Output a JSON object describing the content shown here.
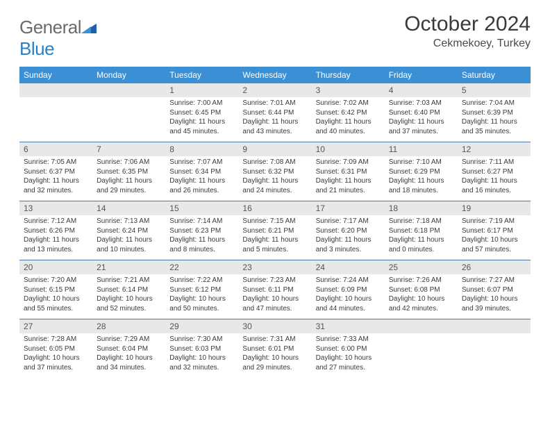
{
  "brand": {
    "part1": "General",
    "part2": "Blue"
  },
  "title": "October 2024",
  "location": "Cekmekoey, Turkey",
  "colors": {
    "header_bg": "#3b8fd4",
    "header_text": "#ffffff",
    "daynum_bg": "#e8e8e8",
    "row_border": "#4a7aa8",
    "body_text": "#3a3a3a",
    "title_text": "#3a3a3a",
    "logo_gray": "#6a6a6a",
    "logo_blue": "#2b7fc4"
  },
  "fonts": {
    "title_size_pt": 22,
    "location_size_pt": 12,
    "dow_size_pt": 9,
    "daynum_size_pt": 9,
    "body_size_pt": 7.5
  },
  "days_of_week": [
    "Sunday",
    "Monday",
    "Tuesday",
    "Wednesday",
    "Thursday",
    "Friday",
    "Saturday"
  ],
  "weeks": [
    [
      null,
      null,
      {
        "n": "1",
        "sunrise": "Sunrise: 7:00 AM",
        "sunset": "Sunset: 6:45 PM",
        "daylight": "Daylight: 11 hours and 45 minutes."
      },
      {
        "n": "2",
        "sunrise": "Sunrise: 7:01 AM",
        "sunset": "Sunset: 6:44 PM",
        "daylight": "Daylight: 11 hours and 43 minutes."
      },
      {
        "n": "3",
        "sunrise": "Sunrise: 7:02 AM",
        "sunset": "Sunset: 6:42 PM",
        "daylight": "Daylight: 11 hours and 40 minutes."
      },
      {
        "n": "4",
        "sunrise": "Sunrise: 7:03 AM",
        "sunset": "Sunset: 6:40 PM",
        "daylight": "Daylight: 11 hours and 37 minutes."
      },
      {
        "n": "5",
        "sunrise": "Sunrise: 7:04 AM",
        "sunset": "Sunset: 6:39 PM",
        "daylight": "Daylight: 11 hours and 35 minutes."
      }
    ],
    [
      {
        "n": "6",
        "sunrise": "Sunrise: 7:05 AM",
        "sunset": "Sunset: 6:37 PM",
        "daylight": "Daylight: 11 hours and 32 minutes."
      },
      {
        "n": "7",
        "sunrise": "Sunrise: 7:06 AM",
        "sunset": "Sunset: 6:35 PM",
        "daylight": "Daylight: 11 hours and 29 minutes."
      },
      {
        "n": "8",
        "sunrise": "Sunrise: 7:07 AM",
        "sunset": "Sunset: 6:34 PM",
        "daylight": "Daylight: 11 hours and 26 minutes."
      },
      {
        "n": "9",
        "sunrise": "Sunrise: 7:08 AM",
        "sunset": "Sunset: 6:32 PM",
        "daylight": "Daylight: 11 hours and 24 minutes."
      },
      {
        "n": "10",
        "sunrise": "Sunrise: 7:09 AM",
        "sunset": "Sunset: 6:31 PM",
        "daylight": "Daylight: 11 hours and 21 minutes."
      },
      {
        "n": "11",
        "sunrise": "Sunrise: 7:10 AM",
        "sunset": "Sunset: 6:29 PM",
        "daylight": "Daylight: 11 hours and 18 minutes."
      },
      {
        "n": "12",
        "sunrise": "Sunrise: 7:11 AM",
        "sunset": "Sunset: 6:27 PM",
        "daylight": "Daylight: 11 hours and 16 minutes."
      }
    ],
    [
      {
        "n": "13",
        "sunrise": "Sunrise: 7:12 AM",
        "sunset": "Sunset: 6:26 PM",
        "daylight": "Daylight: 11 hours and 13 minutes."
      },
      {
        "n": "14",
        "sunrise": "Sunrise: 7:13 AM",
        "sunset": "Sunset: 6:24 PM",
        "daylight": "Daylight: 11 hours and 10 minutes."
      },
      {
        "n": "15",
        "sunrise": "Sunrise: 7:14 AM",
        "sunset": "Sunset: 6:23 PM",
        "daylight": "Daylight: 11 hours and 8 minutes."
      },
      {
        "n": "16",
        "sunrise": "Sunrise: 7:15 AM",
        "sunset": "Sunset: 6:21 PM",
        "daylight": "Daylight: 11 hours and 5 minutes."
      },
      {
        "n": "17",
        "sunrise": "Sunrise: 7:17 AM",
        "sunset": "Sunset: 6:20 PM",
        "daylight": "Daylight: 11 hours and 3 minutes."
      },
      {
        "n": "18",
        "sunrise": "Sunrise: 7:18 AM",
        "sunset": "Sunset: 6:18 PM",
        "daylight": "Daylight: 11 hours and 0 minutes."
      },
      {
        "n": "19",
        "sunrise": "Sunrise: 7:19 AM",
        "sunset": "Sunset: 6:17 PM",
        "daylight": "Daylight: 10 hours and 57 minutes."
      }
    ],
    [
      {
        "n": "20",
        "sunrise": "Sunrise: 7:20 AM",
        "sunset": "Sunset: 6:15 PM",
        "daylight": "Daylight: 10 hours and 55 minutes."
      },
      {
        "n": "21",
        "sunrise": "Sunrise: 7:21 AM",
        "sunset": "Sunset: 6:14 PM",
        "daylight": "Daylight: 10 hours and 52 minutes."
      },
      {
        "n": "22",
        "sunrise": "Sunrise: 7:22 AM",
        "sunset": "Sunset: 6:12 PM",
        "daylight": "Daylight: 10 hours and 50 minutes."
      },
      {
        "n": "23",
        "sunrise": "Sunrise: 7:23 AM",
        "sunset": "Sunset: 6:11 PM",
        "daylight": "Daylight: 10 hours and 47 minutes."
      },
      {
        "n": "24",
        "sunrise": "Sunrise: 7:24 AM",
        "sunset": "Sunset: 6:09 PM",
        "daylight": "Daylight: 10 hours and 44 minutes."
      },
      {
        "n": "25",
        "sunrise": "Sunrise: 7:26 AM",
        "sunset": "Sunset: 6:08 PM",
        "daylight": "Daylight: 10 hours and 42 minutes."
      },
      {
        "n": "26",
        "sunrise": "Sunrise: 7:27 AM",
        "sunset": "Sunset: 6:07 PM",
        "daylight": "Daylight: 10 hours and 39 minutes."
      }
    ],
    [
      {
        "n": "27",
        "sunrise": "Sunrise: 7:28 AM",
        "sunset": "Sunset: 6:05 PM",
        "daylight": "Daylight: 10 hours and 37 minutes."
      },
      {
        "n": "28",
        "sunrise": "Sunrise: 7:29 AM",
        "sunset": "Sunset: 6:04 PM",
        "daylight": "Daylight: 10 hours and 34 minutes."
      },
      {
        "n": "29",
        "sunrise": "Sunrise: 7:30 AM",
        "sunset": "Sunset: 6:03 PM",
        "daylight": "Daylight: 10 hours and 32 minutes."
      },
      {
        "n": "30",
        "sunrise": "Sunrise: 7:31 AM",
        "sunset": "Sunset: 6:01 PM",
        "daylight": "Daylight: 10 hours and 29 minutes."
      },
      {
        "n": "31",
        "sunrise": "Sunrise: 7:33 AM",
        "sunset": "Sunset: 6:00 PM",
        "daylight": "Daylight: 10 hours and 27 minutes."
      },
      null,
      null
    ]
  ]
}
